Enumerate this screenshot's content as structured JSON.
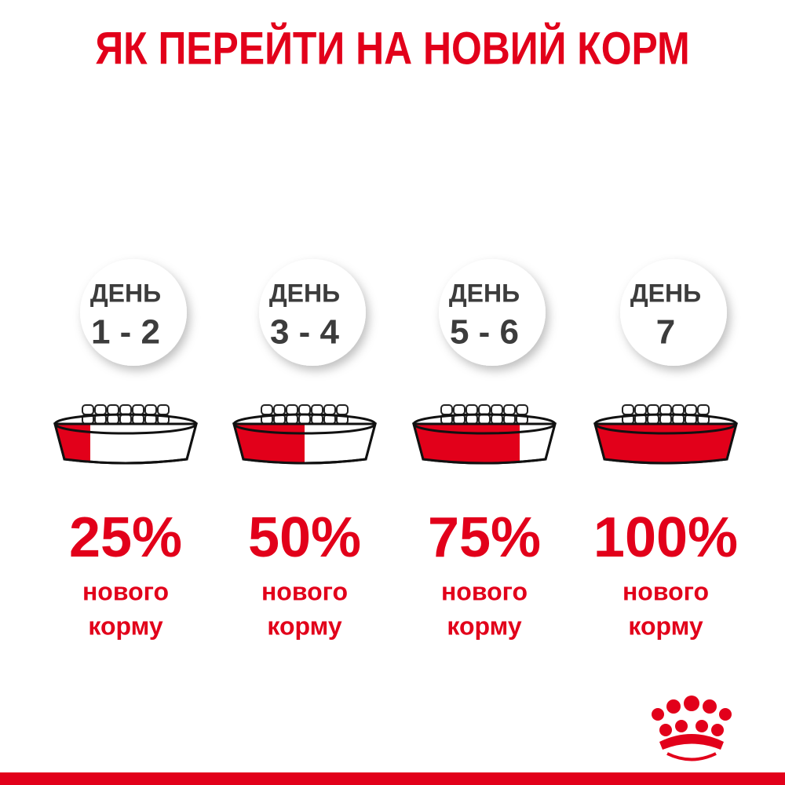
{
  "title": "ЯК ПЕРЕЙТИ НА НОВИЙ КОРМ",
  "steps": [
    {
      "day_label": "ДЕНЬ",
      "days": "1 - 2",
      "percent": 25,
      "percent_label": "25%",
      "caption_line1": "нового",
      "caption_line2": "корму"
    },
    {
      "day_label": "ДЕНЬ",
      "days": "3 - 4",
      "percent": 50,
      "percent_label": "50%",
      "caption_line1": "нового",
      "caption_line2": "корму"
    },
    {
      "day_label": "ДЕНЬ",
      "days": "5 - 6",
      "percent": 75,
      "percent_label": "75%",
      "caption_line1": "нового",
      "caption_line2": "корму"
    },
    {
      "day_label": "ДЕНЬ",
      "days": "7",
      "percent": 100,
      "percent_label": "100%",
      "caption_line1": "нового",
      "caption_line2": "корму"
    }
  ]
}
